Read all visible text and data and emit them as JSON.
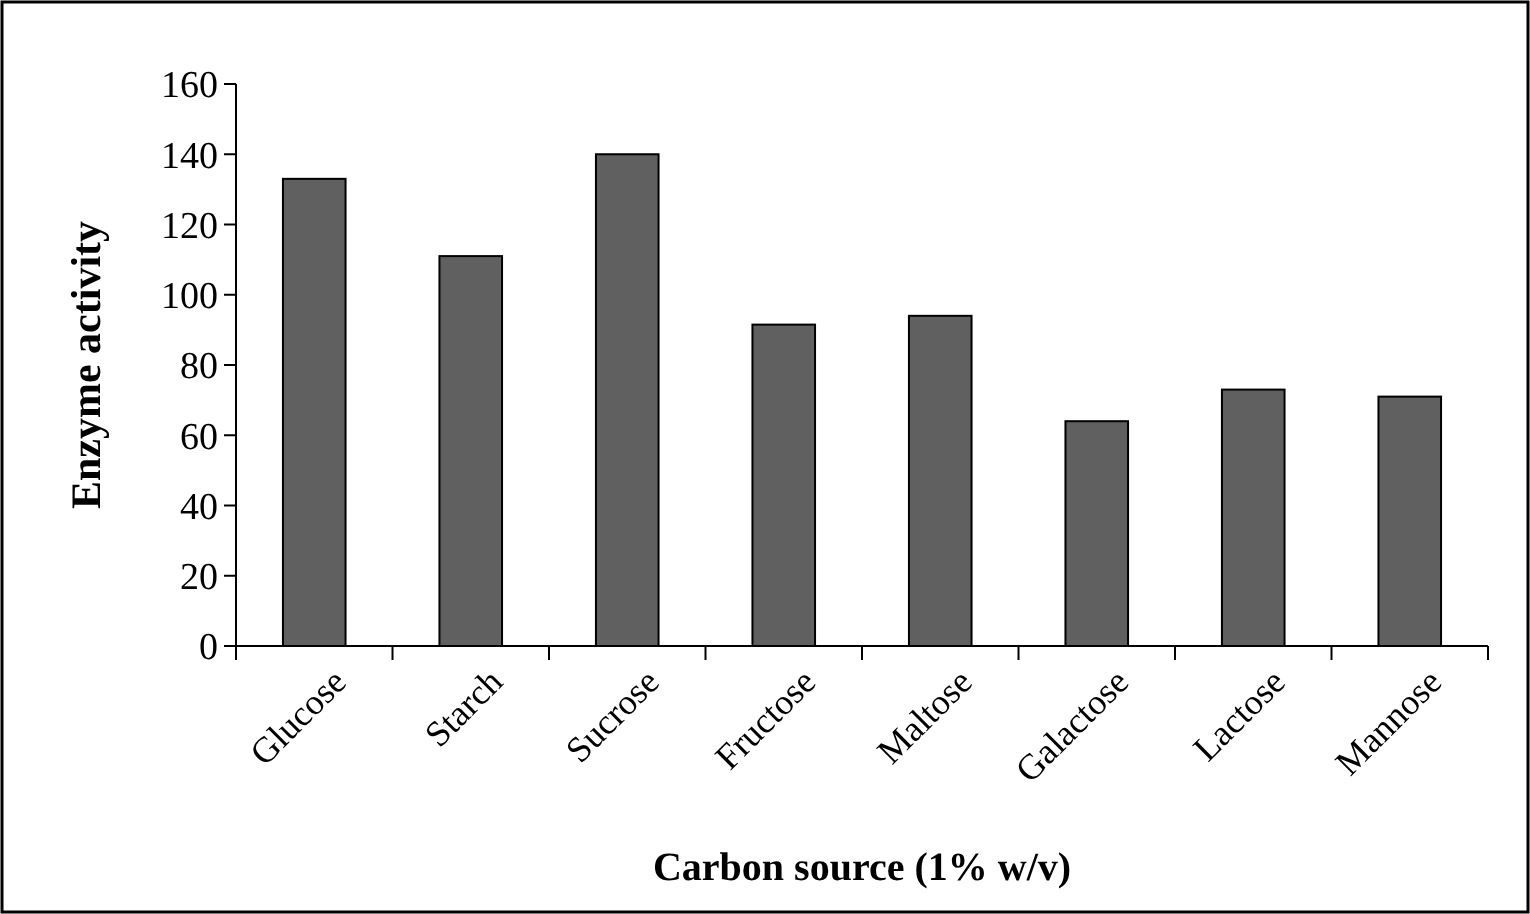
{
  "chart_data": {
    "type": "bar",
    "xlabel": "Carbon source (1% w/v)",
    "ylabel": "Enzyme activity",
    "categories": [
      "Glucose",
      "Starch",
      "Sucrose",
      "Fructose",
      "Maltose",
      "Galactose",
      "Lactose",
      "Mannose"
    ],
    "values": [
      133,
      111,
      140,
      91.5,
      94,
      64,
      73,
      71
    ],
    "color": "#606060",
    "ylim": [
      0,
      160
    ],
    "yticks": [
      0,
      20,
      40,
      60,
      80,
      100,
      120,
      140,
      160
    ]
  }
}
